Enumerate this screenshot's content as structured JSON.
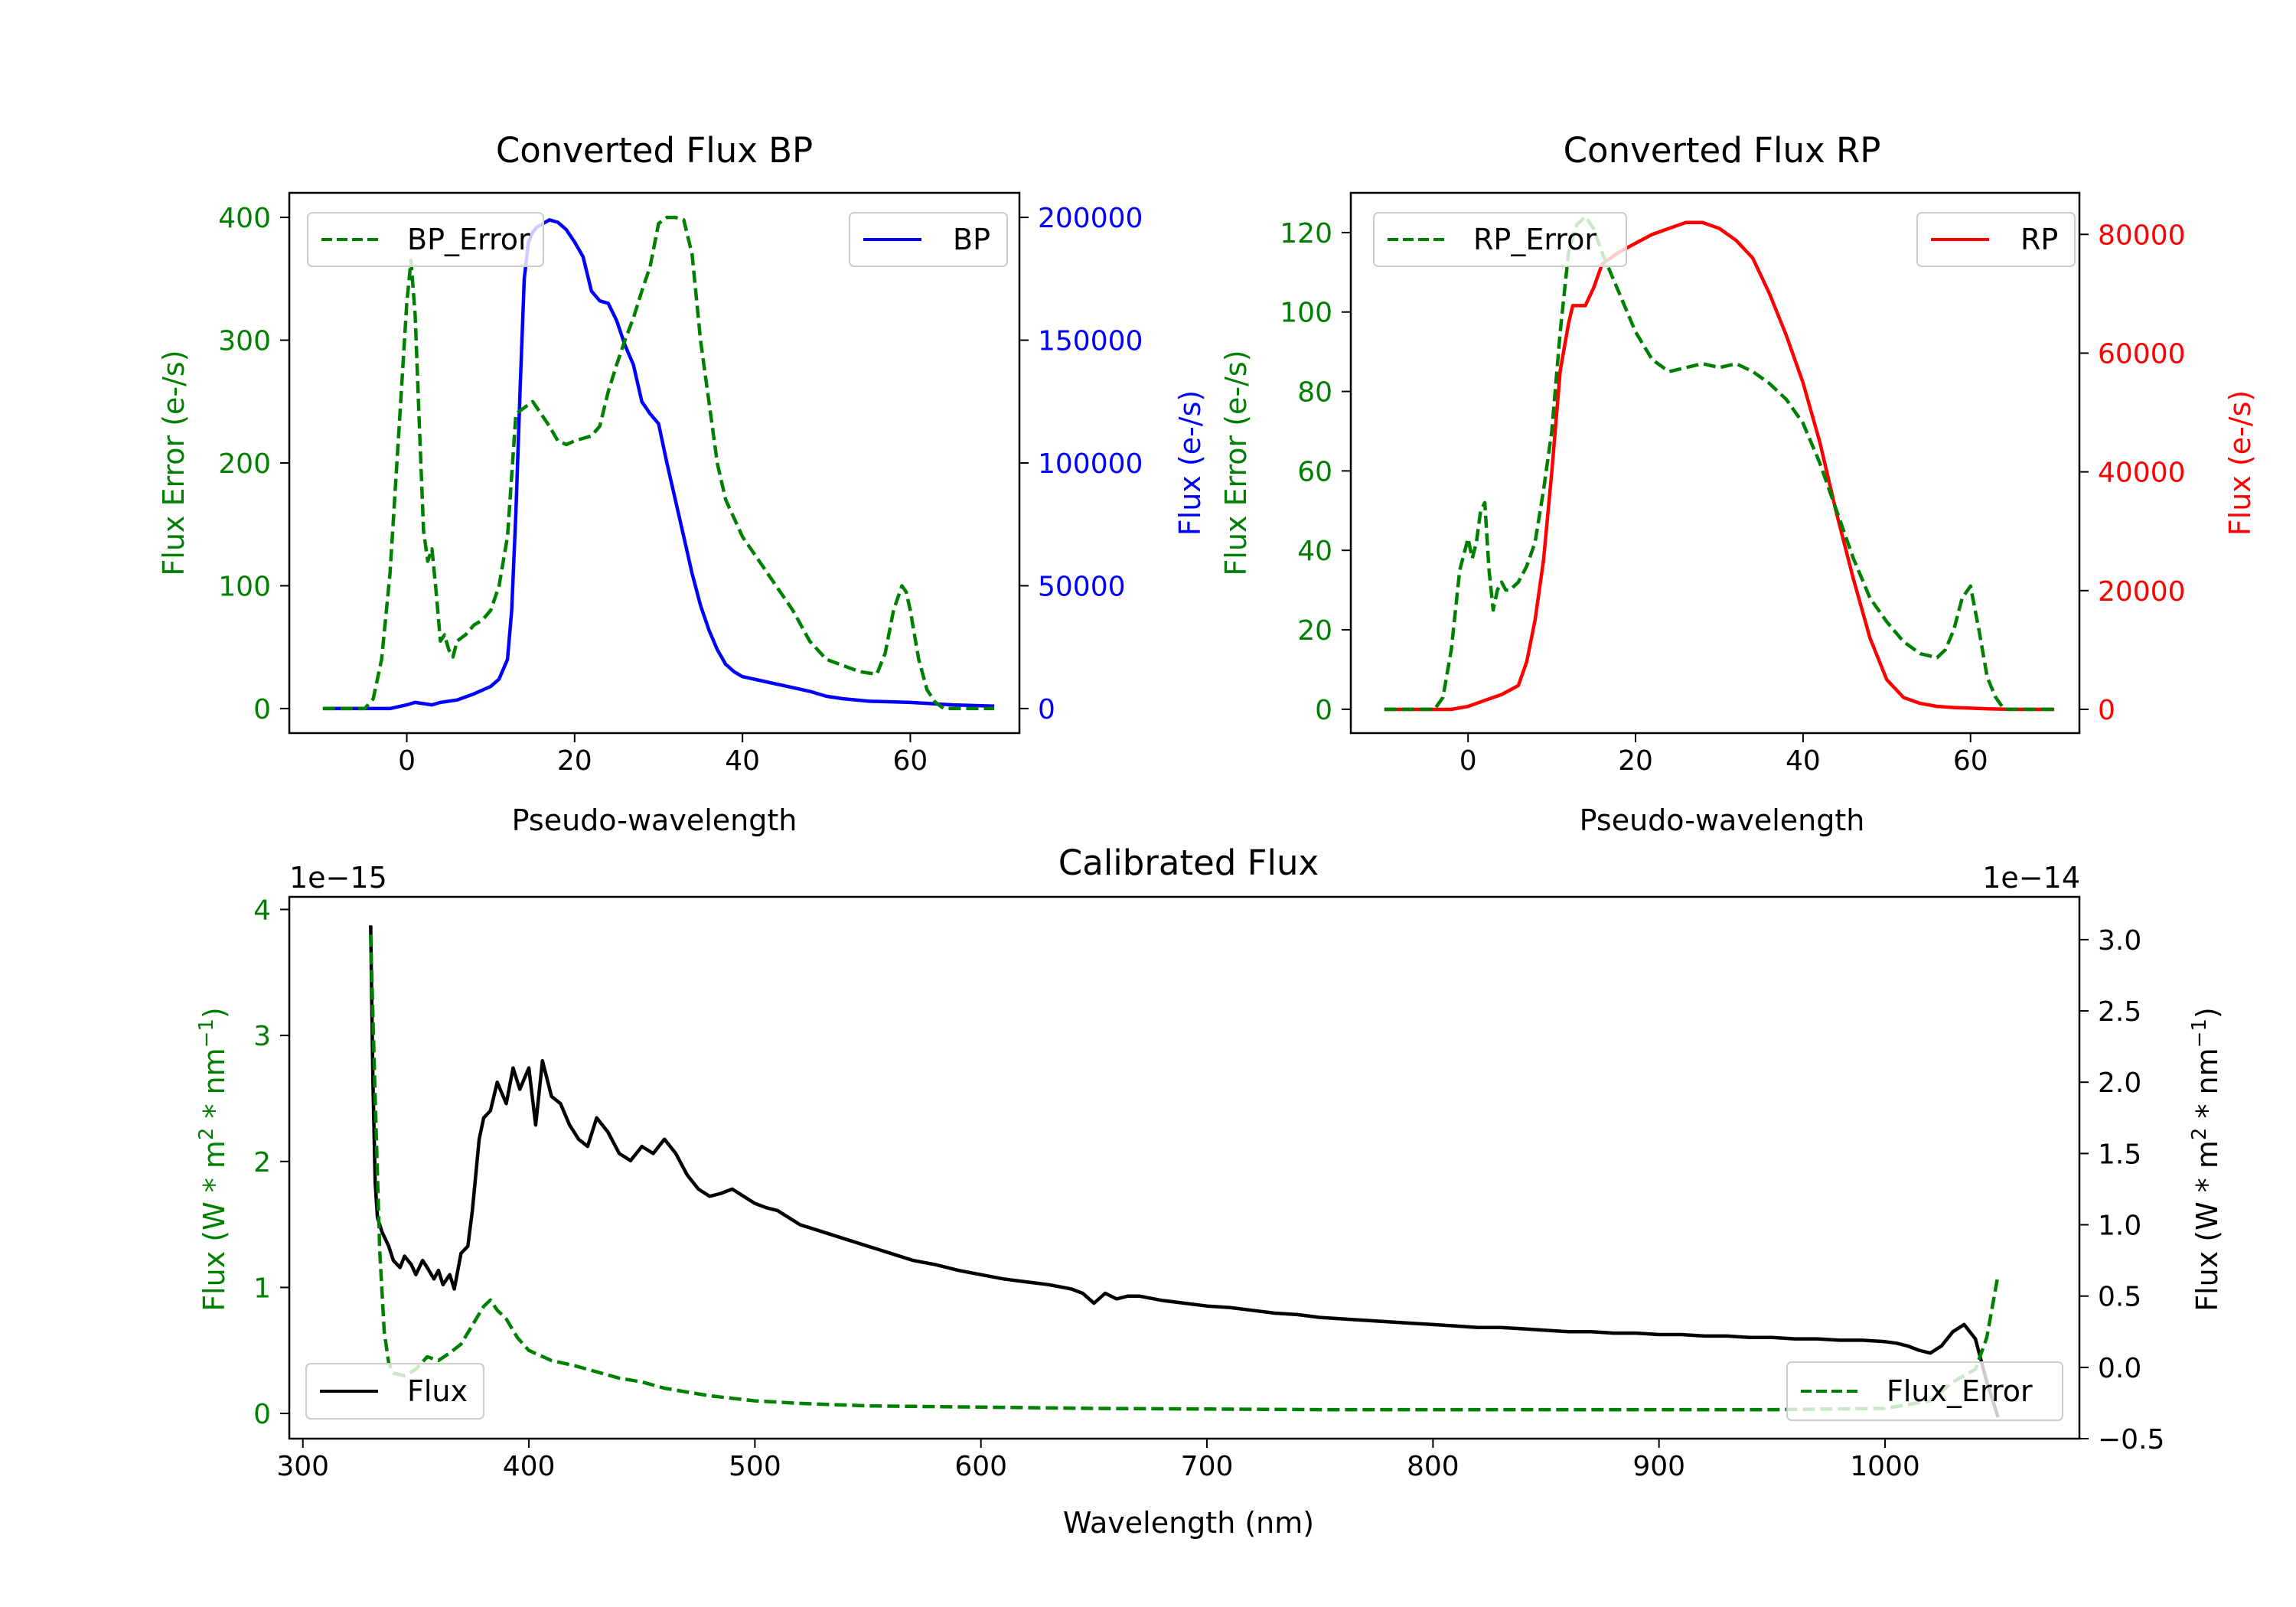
{
  "colors": {
    "green": "#008000",
    "blue": "#0000ff",
    "red": "#ff0000",
    "black": "#000000"
  },
  "chart_data": [
    {
      "id": "bp",
      "type": "line",
      "title": "Converted Flux BP",
      "xlabel": "Pseudo-wavelength",
      "ylabel_left": "Flux Error (e-/s)",
      "ylabel_right": "Flux (e-/s)",
      "xlim": [
        -14,
        73
      ],
      "ylim_left": [
        -20,
        420
      ],
      "ylim_right": [
        -10000,
        210000
      ],
      "xticks": [
        0,
        20,
        40,
        60
      ],
      "yticks_left": [
        0,
        100,
        200,
        300,
        400
      ],
      "yticks_right": [
        0,
        50000,
        100000,
        150000,
        200000
      ],
      "left_series": {
        "name": "BP_Error",
        "color": "green",
        "dash": true,
        "x": [
          -10,
          -5,
          -4,
          -3,
          -2,
          -1,
          0,
          0.5,
          1,
          1.5,
          2,
          2.5,
          3,
          3.5,
          4,
          4.5,
          5,
          5.5,
          6,
          7,
          8,
          9,
          10,
          11,
          12,
          13,
          14,
          15,
          16,
          17,
          18,
          19,
          20,
          21,
          22,
          23,
          24,
          25,
          26,
          27,
          28,
          29,
          30,
          31,
          32,
          33,
          34,
          35,
          36,
          37,
          38,
          39,
          40,
          42,
          44,
          46,
          48,
          50,
          52,
          54,
          56,
          57,
          58,
          59,
          59.5,
          60,
          61,
          62,
          63,
          64,
          65,
          66,
          67,
          68,
          69,
          70
        ],
        "y": [
          0,
          0,
          8,
          40,
          110,
          220,
          330,
          365,
          320,
          230,
          145,
          120,
          130,
          95,
          55,
          60,
          48,
          42,
          55,
          60,
          68,
          72,
          80,
          100,
          140,
          240,
          245,
          250,
          240,
          230,
          218,
          215,
          218,
          220,
          222,
          230,
          258,
          280,
          300,
          318,
          340,
          360,
          395,
          400,
          400,
          398,
          370,
          300,
          250,
          200,
          170,
          155,
          140,
          120,
          100,
          80,
          55,
          40,
          35,
          30,
          28,
          45,
          80,
          100,
          95,
          80,
          40,
          15,
          5,
          0,
          0,
          0,
          0,
          0,
          0,
          0
        ]
      },
      "right_series": {
        "name": "BP",
        "color": "blue",
        "dash": false,
        "x": [
          -10,
          -2,
          0,
          1,
          2,
          3,
          4,
          6,
          8,
          10,
          11,
          12,
          12.5,
          13,
          13.5,
          14,
          14.5,
          15,
          15.5,
          16,
          16.5,
          17,
          18,
          19,
          20,
          21,
          22,
          23,
          24,
          25,
          26,
          27,
          28,
          29,
          30,
          31,
          32,
          33,
          34,
          35,
          36,
          37,
          38,
          39,
          40,
          42,
          44,
          46,
          48,
          50,
          52,
          55,
          60,
          65,
          70
        ],
        "y": [
          0,
          0,
          1500,
          2500,
          2000,
          1500,
          2500,
          3500,
          6000,
          9000,
          12000,
          20000,
          40000,
          80000,
          130000,
          175000,
          190000,
          194000,
          196000,
          197000,
          198000,
          199000,
          198000,
          195000,
          190000,
          184000,
          170000,
          166000,
          165000,
          158000,
          148000,
          140000,
          125000,
          120000,
          116000,
          100000,
          85000,
          70000,
          55000,
          42000,
          32000,
          24000,
          18000,
          15000,
          13000,
          11500,
          10000,
          8500,
          7000,
          5000,
          4000,
          3000,
          2500,
          1500,
          1000
        ]
      },
      "legend_left": "BP_Error",
      "legend_right": "BP"
    },
    {
      "id": "rp",
      "type": "line",
      "title": "Converted Flux RP",
      "xlabel": "Pseudo-wavelength",
      "ylabel_left": "Flux Error (e-/s)",
      "ylabel_right": "Flux (e-/s)",
      "xlim": [
        -14,
        73
      ],
      "ylim_left": [
        -6,
        130
      ],
      "ylim_right": [
        -4000,
        87000
      ],
      "xticks": [
        0,
        20,
        40,
        60
      ],
      "yticks_left": [
        0,
        20,
        40,
        60,
        80,
        100,
        120
      ],
      "yticks_right": [
        0,
        20000,
        40000,
        60000,
        80000
      ],
      "left_series": {
        "name": "RP_Error",
        "color": "green",
        "dash": true,
        "x": [
          -10,
          -4,
          -3,
          -2,
          -1,
          0,
          0.5,
          1,
          1.5,
          2,
          2.5,
          3,
          3.5,
          4,
          4.5,
          5,
          6,
          7,
          8,
          9,
          10,
          11,
          12,
          13,
          14,
          15,
          16,
          17,
          18,
          20,
          22,
          24,
          26,
          28,
          30,
          32,
          34,
          36,
          38,
          40,
          42,
          44,
          46,
          48,
          50,
          52,
          54,
          56,
          57,
          58,
          59,
          60,
          61,
          62,
          63,
          64,
          66,
          68,
          70
        ],
        "y": [
          0,
          0,
          3,
          15,
          35,
          43,
          38,
          42,
          50,
          52,
          35,
          25,
          30,
          32,
          30,
          30,
          32,
          36,
          42,
          55,
          70,
          95,
          115,
          122,
          124,
          121,
          115,
          110,
          105,
          95,
          88,
          85,
          86,
          87,
          86,
          87,
          85,
          82,
          78,
          72,
          62,
          50,
          38,
          28,
          22,
          17,
          14,
          13,
          15,
          20,
          28,
          31,
          20,
          8,
          3,
          0,
          0,
          0,
          0
        ]
      },
      "right_series": {
        "name": "RP",
        "color": "red",
        "dash": false,
        "x": [
          -10,
          -2,
          0,
          2,
          4,
          6,
          7,
          8,
          9,
          10,
          11,
          12,
          12.5,
          13,
          14,
          15,
          16,
          17,
          18,
          20,
          22,
          24,
          26,
          28,
          30,
          32,
          34,
          36,
          38,
          40,
          42,
          44,
          46,
          48,
          50,
          52,
          54,
          56,
          58,
          60,
          62,
          65,
          70
        ],
        "y": [
          0,
          0,
          500,
          1500,
          2500,
          4000,
          8000,
          15000,
          25000,
          40000,
          57000,
          65000,
          68000,
          68000,
          68000,
          71000,
          75000,
          76000,
          77000,
          78500,
          80000,
          81000,
          82000,
          82000,
          81000,
          79000,
          76000,
          70000,
          63000,
          55000,
          45000,
          33000,
          22000,
          12000,
          5000,
          2000,
          1000,
          500,
          300,
          200,
          100,
          0,
          0
        ]
      },
      "legend_left": "RP_Error",
      "legend_right": "RP"
    },
    {
      "id": "cal",
      "type": "line",
      "title": "Calibrated Flux",
      "xlabel": "Wavelength (nm)",
      "ylabel_left": "Flux (W * m2 * nm -1)",
      "ylabel_right": "Flux (W * m2 * nm -1)",
      "offset_left": "1e−15",
      "offset_right": "1e−14",
      "xlim": [
        294,
        1086
      ],
      "ylim_left": [
        -0.2,
        4.1
      ],
      "ylim_right": [
        -0.5,
        3.3
      ],
      "xticks": [
        300,
        400,
        500,
        600,
        700,
        800,
        900,
        1000
      ],
      "yticks_left": [
        0,
        1,
        2,
        3,
        4
      ],
      "yticks_right": [
        -0.5,
        0.0,
        0.5,
        1.0,
        1.5,
        2.0,
        2.5,
        3.0
      ],
      "ytick_labels_right": [
        "−0.5",
        "0.0",
        "0.5",
        "1.0",
        "1.5",
        "2.0",
        "2.5",
        "3.0"
      ],
      "left_series": {
        "name": "Flux_Error",
        "color": "green",
        "dash": true,
        "x": [
          330,
          332,
          334,
          336,
          338,
          340,
          345,
          350,
          355,
          360,
          365,
          370,
          375,
          380,
          383,
          386,
          390,
          395,
          400,
          410,
          420,
          430,
          440,
          450,
          460,
          470,
          480,
          490,
          500,
          520,
          550,
          600,
          650,
          700,
          750,
          800,
          850,
          900,
          950,
          1000,
          1020,
          1030,
          1040,
          1045,
          1050
        ],
        "y": [
          3.8,
          2.5,
          1.3,
          0.65,
          0.4,
          0.32,
          0.3,
          0.35,
          0.45,
          0.42,
          0.48,
          0.55,
          0.7,
          0.85,
          0.9,
          0.82,
          0.75,
          0.6,
          0.5,
          0.42,
          0.38,
          0.33,
          0.28,
          0.25,
          0.2,
          0.17,
          0.14,
          0.12,
          0.1,
          0.08,
          0.06,
          0.05,
          0.04,
          0.035,
          0.03,
          0.03,
          0.03,
          0.03,
          0.03,
          0.04,
          0.1,
          0.25,
          0.35,
          0.6,
          1.1
        ]
      },
      "right_series": {
        "name": "Flux",
        "color": "black",
        "dash": false,
        "x": [
          330,
          331,
          332,
          333,
          335,
          338,
          340,
          343,
          345,
          348,
          350,
          353,
          355,
          358,
          360,
          362,
          365,
          367,
          370,
          373,
          375,
          378,
          380,
          383,
          386,
          390,
          393,
          396,
          400,
          403,
          406,
          410,
          414,
          418,
          422,
          426,
          430,
          435,
          440,
          445,
          450,
          455,
          460,
          465,
          470,
          475,
          480,
          485,
          490,
          495,
          500,
          505,
          510,
          515,
          520,
          530,
          540,
          550,
          560,
          570,
          580,
          590,
          600,
          610,
          620,
          630,
          640,
          645,
          650,
          655,
          660,
          665,
          670,
          680,
          690,
          700,
          710,
          720,
          730,
          740,
          750,
          760,
          770,
          780,
          790,
          800,
          810,
          820,
          830,
          840,
          850,
          860,
          870,
          880,
          890,
          900,
          910,
          920,
          930,
          940,
          950,
          960,
          970,
          980,
          990,
          1000,
          1005,
          1010,
          1015,
          1020,
          1025,
          1030,
          1035,
          1040,
          1045,
          1050
        ],
        "y": [
          3.1,
          2.0,
          1.3,
          1.05,
          0.95,
          0.85,
          0.75,
          0.7,
          0.78,
          0.72,
          0.65,
          0.75,
          0.7,
          0.62,
          0.68,
          0.58,
          0.65,
          0.55,
          0.8,
          0.85,
          1.1,
          1.6,
          1.75,
          1.8,
          2.0,
          1.85,
          2.1,
          1.95,
          2.1,
          1.7,
          2.15,
          1.9,
          1.85,
          1.7,
          1.6,
          1.55,
          1.75,
          1.65,
          1.5,
          1.45,
          1.55,
          1.5,
          1.6,
          1.5,
          1.35,
          1.25,
          1.2,
          1.22,
          1.25,
          1.2,
          1.15,
          1.12,
          1.1,
          1.05,
          1.0,
          0.95,
          0.9,
          0.85,
          0.8,
          0.75,
          0.72,
          0.68,
          0.65,
          0.62,
          0.6,
          0.58,
          0.55,
          0.52,
          0.45,
          0.52,
          0.48,
          0.5,
          0.5,
          0.47,
          0.45,
          0.43,
          0.42,
          0.4,
          0.38,
          0.37,
          0.35,
          0.34,
          0.33,
          0.32,
          0.31,
          0.3,
          0.29,
          0.28,
          0.28,
          0.27,
          0.26,
          0.25,
          0.25,
          0.24,
          0.24,
          0.23,
          0.23,
          0.22,
          0.22,
          0.21,
          0.21,
          0.2,
          0.2,
          0.19,
          0.19,
          0.18,
          0.17,
          0.15,
          0.12,
          0.1,
          0.15,
          0.25,
          0.3,
          0.2,
          -0.1,
          -0.35
        ]
      },
      "legend_left": "Flux_Error",
      "legend_right": "Flux"
    }
  ]
}
